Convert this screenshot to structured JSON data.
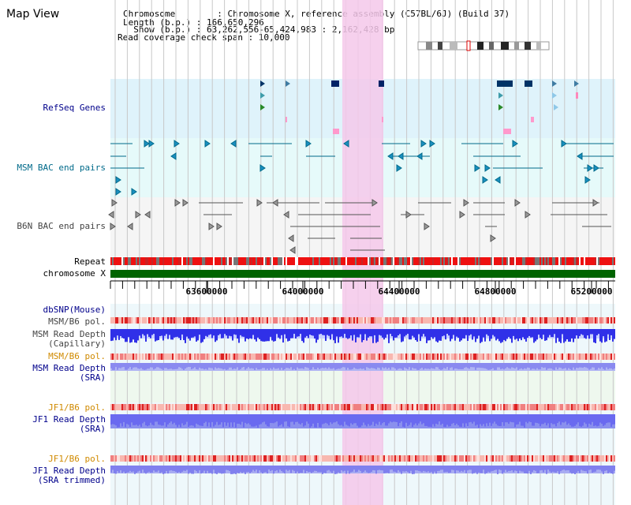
{
  "view_title": "Map View",
  "header": {
    "chromosome_line": "Chromosome        : Chromosome X, reference assembly (C57BL/6J) (Build 37)",
    "length_line": "Length (b.p.) : 166,650,296",
    "show_line": "  Show (b.p.) : 63,262,556-65,424,983 : 2,162,428 bp",
    "coverage_line": "Read coverage check span : 10,000"
  },
  "tracks": {
    "refseq": "RefSeq Genes",
    "msm_bac": "MSM BAC end pairs",
    "b6n_bac": "B6N BAC end pairs",
    "repeat": "Repeat",
    "chromosome": "chromosome X",
    "dbsnp": "dbSNP(Mouse)",
    "msm_pol_1": "MSM/B6 pol.",
    "msm_depth_cap": "MSM Read Depth\n(Capillary)",
    "msm_pol_2": "MSM/B6 pol.",
    "msm_depth_sra": "MSM Read Depth\n(SRA)",
    "jf1_pol_1": "JF1/B6 pol.",
    "jf1_depth_sra": "JF1 Read Depth\n(SRA)",
    "jf1_pol_2": "JF1/B6 pol.",
    "jf1_depth_trim": "JF1 Read Depth\n(SRA trimmed)"
  },
  "ruler_ticks": [
    "63600000",
    "64000000",
    "64400000",
    "64800000",
    "65200000"
  ],
  "colors": {
    "refseq_bg": "#dff3fb",
    "msm_bg": "#e6fafa",
    "b6n_bg": "#f5f5f5",
    "highlight": "#f5c8ea",
    "chromosome_bar": "#006400",
    "depth_blue": "#3333ee",
    "pol_red": "#ee3333"
  }
}
